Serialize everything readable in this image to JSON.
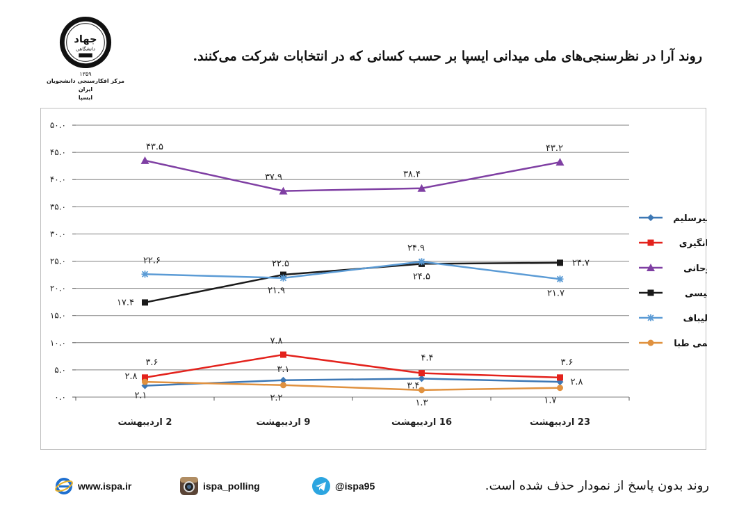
{
  "logo": {
    "seal_text": "جهاد",
    "seal_sub": "دانشگاهی",
    "year": "۱۳۵۹",
    "org_line1": "مرکز افکارسنجی دانشجویان ایران",
    "org_line2": "ایسپا"
  },
  "title": "روند آرا در نظرسنجی‌های ملی میدانی ایسپا بر حسب کسانی که در انتخابات شرکت می‌کنند.",
  "note": "روند بدون پاسخ از نمودار حذف شده است.",
  "footer": {
    "website": "www.ispa.ir",
    "instagram": "ispa_polling",
    "telegram": "@ispa95"
  },
  "colors": {
    "aghamirsalim": "#3d78b5",
    "jahangiri": "#e3221c",
    "rouhani": "#7f3fa3",
    "raisi": "#1a1a1a",
    "ghalibaf": "#5b9bd5",
    "hashemitaba": "#e0913f",
    "grid": "#7f7f7f"
  },
  "chart_data": {
    "type": "line",
    "categories": [
      "2 اردیبهشت",
      "9 اردیبهشت",
      "16 اردیبهشت",
      "23 اردیبهشت"
    ],
    "ylim": [
      0,
      50
    ],
    "yticks": [
      "۰.۰",
      "۵.۰",
      "۱۰.۰",
      "۱۵.۰",
      "۲۰.۰",
      "۲۵.۰",
      "۳۰.۰",
      "۳۵.۰",
      "۴۰.۰",
      "۴۵.۰",
      "۵۰.۰"
    ],
    "grid": true,
    "legend_position": "right",
    "series": [
      {
        "key": "aghamirsalim",
        "name": "آقا میرسلیم",
        "marker": "diamond",
        "values": [
          2.1,
          3.1,
          3.4,
          2.8
        ],
        "labels": [
          "۲.۱",
          "۳.۱",
          "۳.۴",
          "۲.۸"
        ]
      },
      {
        "key": "jahangiri",
        "name": "جهانگیری",
        "marker": "square",
        "values": [
          3.6,
          7.8,
          4.4,
          3.6
        ],
        "labels": [
          "۳.۶",
          "۷.۸",
          "۴.۴",
          "۳.۶"
        ]
      },
      {
        "key": "rouhani",
        "name": "روحانی",
        "marker": "triangle",
        "values": [
          43.5,
          37.9,
          38.4,
          43.2
        ],
        "labels": [
          "۴۳.۵",
          "۳۷.۹",
          "۳۸.۴",
          "۴۳.۲"
        ]
      },
      {
        "key": "raisi",
        "name": "رئیسی",
        "marker": "square",
        "values": [
          17.4,
          22.5,
          24.5,
          24.7
        ],
        "labels": [
          "۱۷.۴",
          "۲۲.۵",
          "۲۴.۵",
          "۲۴.۷"
        ]
      },
      {
        "key": "ghalibaf",
        "name": "قالیباف",
        "marker": "star",
        "values": [
          22.6,
          21.9,
          24.9,
          21.7
        ],
        "labels": [
          "۲۲.۶",
          "۲۱.۹",
          "۲۴.۹",
          "۲۱.۷"
        ]
      },
      {
        "key": "hashemitaba",
        "name": "هاشمی طبا",
        "marker": "circle",
        "values": [
          2.8,
          2.2,
          1.3,
          1.7
        ],
        "labels": [
          "۲.۸",
          "۲.۲",
          "۱.۳",
          "۱.۷"
        ]
      }
    ]
  }
}
